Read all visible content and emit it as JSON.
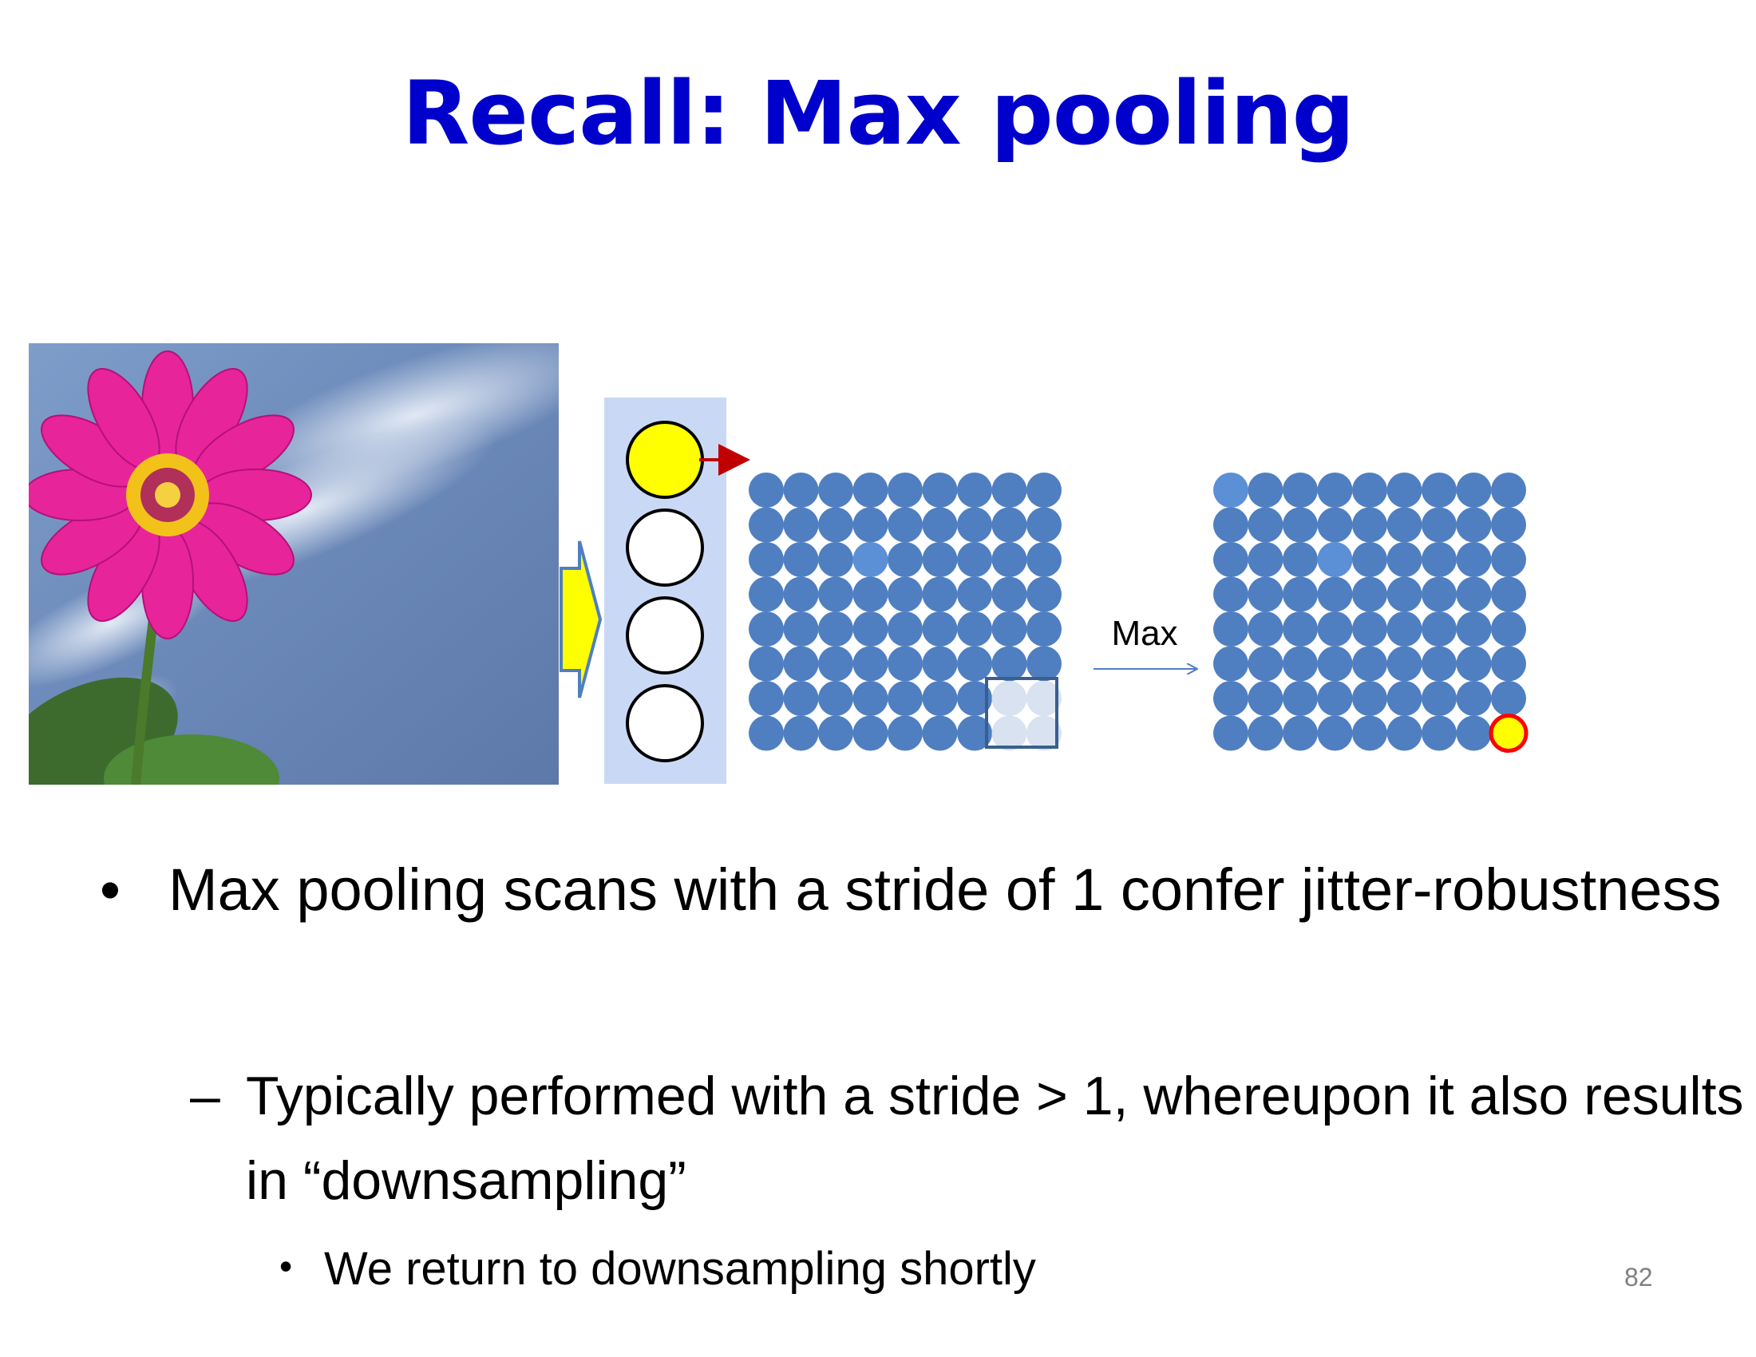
{
  "slide": {
    "title": "Recall: Max pooling",
    "page_number": "82"
  },
  "diagram": {
    "max_label": "Max",
    "photo_description_icon": "pink-flower-icon",
    "colors": {
      "input_panel": "#c9d9f5",
      "feature_dot": "#4f7fc1",
      "feature_dot_light": "#5b8fd6",
      "highlight_yellow": "#ffff00",
      "arrow_red": "#c00000",
      "output_highlight_border": "#ff0000",
      "pool_window_border": "#3a5f8f",
      "pool_window_fill": "#d8e2f0"
    },
    "grid": {
      "rows": 8,
      "cols": 9
    },
    "neurons": 4
  },
  "bullets": {
    "level1_marker": "•",
    "level1_text": "Max pooling scans with a stride of 1 confer jitter-robustness",
    "level2_marker": "–",
    "level2_text": "Typically performed with a stride > 1, whereupon it also results in “downsampling”",
    "level3_marker": "•",
    "level3_text": "We return to downsampling shortly"
  }
}
